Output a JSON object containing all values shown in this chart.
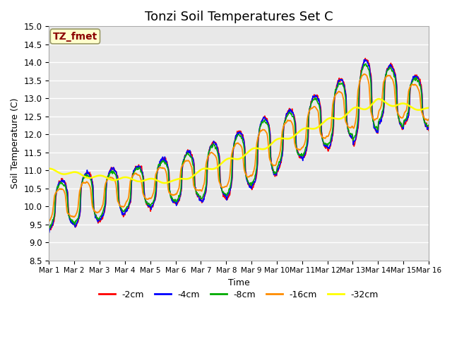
{
  "title": "Tonzi Soil Temperatures Set C",
  "xlabel": "Time",
  "ylabel": "Soil Temperature (C)",
  "ylim": [
    8.5,
    15.0
  ],
  "annotation_text": "TZ_fmet",
  "annotation_color": "#8B0000",
  "annotation_bg": "#FFFFCC",
  "annotation_border": "#999966",
  "series_colors": {
    "-2cm": "#FF0000",
    "-4cm": "#0000FF",
    "-8cm": "#00AA00",
    "-16cm": "#FF8C00",
    "-32cm": "#FFFF00"
  },
  "xtick_labels": [
    "Mar 1",
    "Mar 2",
    "Mar 3",
    "Mar 4",
    "Mar 5",
    "Mar 6",
    "Mar 7",
    "Mar 8",
    "Mar 9",
    "Mar 10",
    "Mar 11",
    "Mar 12",
    "Mar 13",
    "Mar 14",
    "Mar 15",
    "Mar 16"
  ],
  "background_color": "#E8E8E8",
  "grid_color": "#FFFFFF",
  "title_fontsize": 13,
  "figsize": [
    6.4,
    4.8
  ],
  "dpi": 100
}
